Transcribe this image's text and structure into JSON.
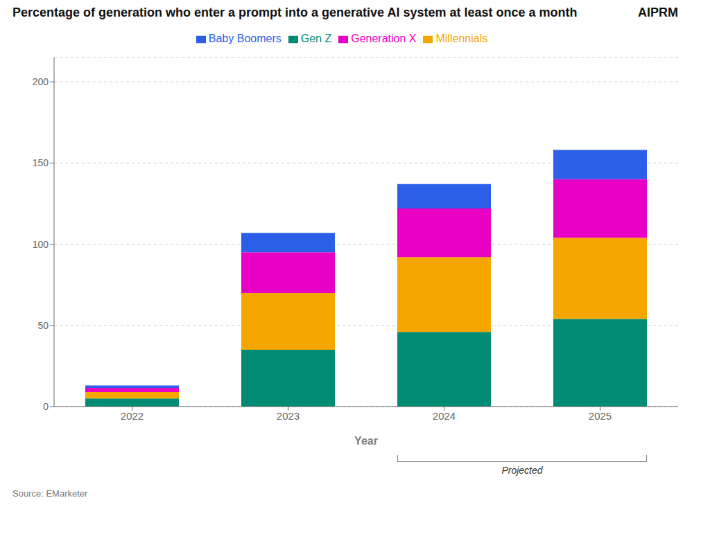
{
  "chart_data": {
    "type": "bar",
    "stacked": true,
    "title": "Percentage of generation who enter a prompt into a generative AI system at least once a month",
    "x_label": "Year",
    "categories": [
      "2022",
      "2023",
      "2024",
      "2025"
    ],
    "series": [
      {
        "name": "Gen Z",
        "color": "#008B74",
        "values": [
          5.0,
          35.0,
          46.0,
          54.0
        ]
      },
      {
        "name": "Millennials",
        "color": "#F5A700",
        "values": [
          4.0,
          35.0,
          46.0,
          50.0
        ]
      },
      {
        "name": "Generation X",
        "color": "#E800C5",
        "values": [
          2.5,
          25.0,
          30.0,
          36.0
        ]
      },
      {
        "name": "Baby Boomers",
        "color": "#2B5FE8",
        "values": [
          1.5,
          12.0,
          15.0,
          18.0
        ]
      }
    ],
    "ylim": [
      0,
      215
    ],
    "yticks": [
      0,
      50,
      100,
      150,
      200
    ],
    "grid": true,
    "legend": "top",
    "annotations": [
      {
        "text": "Projected",
        "from": "2024",
        "to": "2025"
      },
      {
        "text": "Source: EMarketer"
      },
      {
        "text": "AIPRM"
      }
    ]
  }
}
